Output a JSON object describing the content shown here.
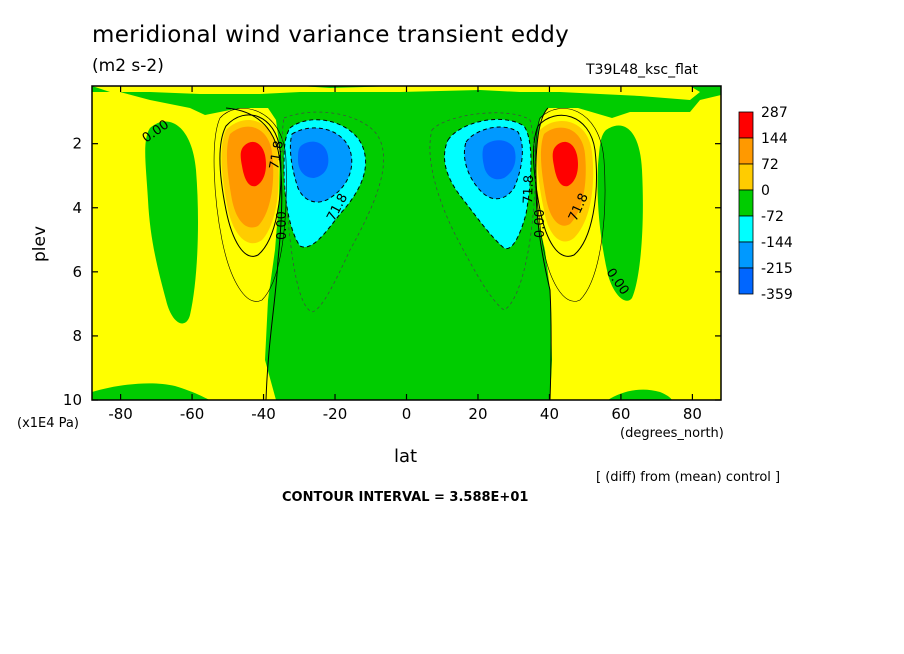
{
  "chart_data": {
    "type": "contour",
    "title": "meridional wind variance transient eddy",
    "units": "(m2 s-2)",
    "run_label": "T39L48_ksc_flat",
    "xlabel": "lat",
    "ylabel": "plev",
    "x_unit": "(degrees_north)",
    "y_unit": "(x1E4 Pa)",
    "xlim": [
      -88,
      88
    ],
    "ylim": [
      10,
      0.2
    ],
    "x_ticks": [
      "-80",
      "-60",
      "-40",
      "-20",
      "0",
      "20",
      "40",
      "60",
      "80"
    ],
    "x_tick_values": [
      -80,
      -60,
      -40,
      -20,
      0,
      20,
      40,
      60,
      80
    ],
    "y_ticks": [
      "2",
      "4",
      "6",
      "8",
      "10"
    ],
    "y_tick_values": [
      2,
      4,
      6,
      8,
      10
    ],
    "contour_labels": [
      "0.00",
      "71.8",
      "0.00",
      "71.8",
      "71.8",
      "71.8",
      "0.00",
      "0.00"
    ],
    "contour_interval": "CONTOUR INTERVAL = 3.588E+01",
    "note": "[ (diff) from (mean) control ]",
    "colorbar": {
      "levels": [
        "287",
        "144",
        "72",
        "0",
        "-72",
        "-144",
        "-215",
        "-359"
      ],
      "colors": [
        "#ff0000",
        "#ff9900",
        "#ffcc00",
        "#00cc00",
        "#00ffff",
        "#0099ff",
        "#0066ff"
      ]
    },
    "features": [
      {
        "kind": "positive maximum",
        "lat": -44,
        "plev": 2.5,
        "value": 287
      },
      {
        "kind": "negative minimum",
        "lat": -27,
        "plev": 2.5,
        "value": -359
      },
      {
        "kind": "negative minimum",
        "lat": 27,
        "plev": 2.5,
        "value": -359
      },
      {
        "kind": "positive maximum",
        "lat": 44,
        "plev": 2.5,
        "value": 287
      }
    ]
  },
  "colors": {
    "yellow": "#ffff00",
    "green": "#00cc00",
    "orange": "#ff9900",
    "light_orange": "#ffcc00",
    "red": "#ff0000",
    "cyan": "#00ffff",
    "light_blue": "#0099ff",
    "blue": "#0066ff"
  }
}
